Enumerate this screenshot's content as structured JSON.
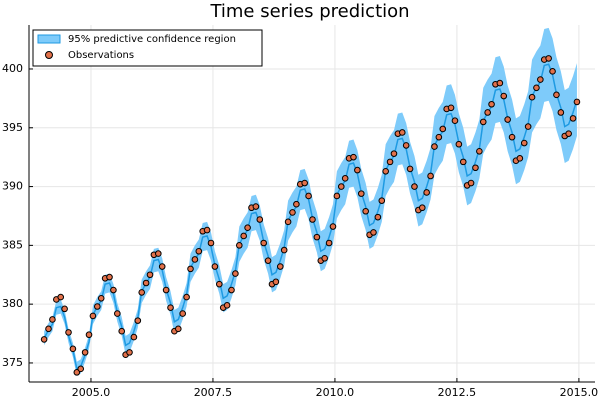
{
  "chart_data": {
    "type": "line",
    "title": "Time series prediction",
    "x": [
      2004.04,
      2004.13,
      2004.21,
      2004.29,
      2004.38,
      2004.46,
      2004.54,
      2004.63,
      2004.71,
      2004.79,
      2004.88,
      2004.96,
      2005.04,
      2005.13,
      2005.21,
      2005.29,
      2005.38,
      2005.46,
      2005.54,
      2005.63,
      2005.71,
      2005.79,
      2005.88,
      2005.96,
      2006.04,
      2006.13,
      2006.21,
      2006.29,
      2006.38,
      2006.46,
      2006.54,
      2006.63,
      2006.71,
      2006.79,
      2006.88,
      2006.96,
      2007.04,
      2007.13,
      2007.21,
      2007.29,
      2007.38,
      2007.46,
      2007.54,
      2007.63,
      2007.71,
      2007.79,
      2007.88,
      2007.96,
      2008.04,
      2008.13,
      2008.21,
      2008.29,
      2008.38,
      2008.46,
      2008.54,
      2008.63,
      2008.71,
      2008.79,
      2008.88,
      2008.96,
      2009.04,
      2009.13,
      2009.21,
      2009.29,
      2009.38,
      2009.46,
      2009.54,
      2009.63,
      2009.71,
      2009.79,
      2009.88,
      2009.96,
      2010.04,
      2010.13,
      2010.21,
      2010.29,
      2010.38,
      2010.46,
      2010.54,
      2010.63,
      2010.71,
      2010.79,
      2010.88,
      2010.96,
      2011.04,
      2011.13,
      2011.21,
      2011.29,
      2011.38,
      2011.46,
      2011.54,
      2011.63,
      2011.71,
      2011.79,
      2011.88,
      2011.96,
      2012.04,
      2012.13,
      2012.21,
      2012.29,
      2012.38,
      2012.46,
      2012.54,
      2012.63,
      2012.71,
      2012.79,
      2012.88,
      2012.96,
      2013.04,
      2013.13,
      2013.21,
      2013.29,
      2013.38,
      2013.46,
      2013.54,
      2013.63,
      2013.71,
      2013.79,
      2013.88,
      2013.96,
      2014.04,
      2014.13,
      2014.21,
      2014.29,
      2014.38,
      2014.46,
      2014.54,
      2014.63,
      2014.71,
      2014.79,
      2014.88,
      2014.96
    ],
    "series": [
      {
        "name": "95% predictive confidence region",
        "type": "band",
        "color": "#7ecbfa",
        "line_color": "#1e9ae2",
        "values": [
          377.1,
          377.8,
          378.3,
          379.7,
          379.8,
          378.9,
          377.3,
          376.1,
          374.5,
          374.7,
          375.7,
          376.8,
          379.1,
          379.8,
          380.3,
          381.7,
          381.8,
          380.9,
          379.3,
          378.1,
          376.5,
          376.7,
          377.7,
          378.8,
          381.1,
          381.8,
          382.3,
          383.7,
          383.8,
          382.9,
          381.3,
          380.1,
          378.5,
          378.7,
          379.7,
          380.8,
          383.1,
          383.8,
          384.3,
          385.7,
          385.8,
          384.9,
          383.3,
          382.1,
          380.5,
          380.7,
          381.7,
          382.8,
          385.1,
          385.8,
          386.3,
          387.7,
          387.8,
          386.9,
          385.3,
          384.1,
          382.5,
          382.7,
          383.7,
          384.8,
          387.1,
          387.8,
          388.3,
          389.7,
          389.8,
          388.9,
          387.3,
          386.1,
          384.5,
          384.7,
          385.7,
          386.8,
          389.3,
          390.0,
          390.5,
          391.9,
          392.0,
          391.1,
          389.5,
          388.3,
          386.7,
          386.9,
          387.9,
          389.0,
          391.4,
          392.1,
          392.6,
          394.0,
          394.1,
          393.2,
          391.6,
          390.4,
          388.8,
          389.0,
          390.0,
          391.1,
          393.5,
          394.2,
          394.7,
          396.1,
          396.2,
          395.3,
          393.7,
          392.5,
          390.9,
          391.1,
          392.1,
          393.2,
          395.6,
          396.3,
          396.8,
          398.2,
          398.3,
          397.4,
          395.8,
          394.6,
          393.0,
          393.2,
          394.2,
          395.3,
          397.7,
          398.4,
          398.9,
          400.3,
          400.4,
          399.5,
          397.9,
          396.7,
          395.1,
          395.3,
          396.3,
          397.4
        ],
        "errors": [
          0.6,
          0.6,
          0.6,
          0.6,
          0.6,
          0.6,
          0.6,
          0.6,
          0.6,
          0.6,
          0.6,
          0.6,
          0.8,
          0.8,
          0.8,
          0.8,
          0.8,
          0.8,
          0.8,
          0.8,
          0.8,
          0.8,
          0.8,
          0.8,
          1.0,
          1.0,
          1.0,
          1.0,
          1.0,
          1.0,
          1.0,
          1.0,
          1.0,
          1.0,
          1.0,
          1.0,
          1.2,
          1.2,
          1.2,
          1.2,
          1.2,
          1.2,
          1.2,
          1.2,
          1.2,
          1.2,
          1.2,
          1.2,
          1.5,
          1.5,
          1.5,
          1.5,
          1.5,
          1.5,
          1.5,
          1.5,
          1.5,
          1.5,
          1.5,
          1.5,
          1.7,
          1.7,
          1.7,
          1.7,
          1.7,
          1.7,
          1.7,
          1.7,
          1.7,
          1.7,
          1.7,
          1.7,
          2.0,
          2.0,
          2.0,
          2.0,
          2.0,
          2.0,
          2.0,
          2.0,
          2.0,
          2.0,
          2.0,
          2.0,
          2.2,
          2.2,
          2.2,
          2.2,
          2.2,
          2.2,
          2.2,
          2.2,
          2.2,
          2.2,
          2.2,
          2.2,
          2.5,
          2.5,
          2.5,
          2.5,
          2.5,
          2.5,
          2.5,
          2.5,
          2.5,
          2.5,
          2.5,
          2.5,
          2.8,
          2.8,
          2.8,
          2.8,
          2.8,
          2.8,
          2.8,
          2.8,
          2.8,
          2.8,
          2.8,
          2.8,
          3.1,
          3.1,
          3.1,
          3.1,
          3.1,
          3.1,
          3.1,
          3.1,
          3.1,
          3.1,
          3.1,
          3.1
        ]
      },
      {
        "name": "Observations",
        "type": "scatter",
        "color": "#e2714a",
        "values": [
          377.0,
          377.9,
          378.7,
          380.4,
          380.6,
          379.6,
          377.6,
          376.2,
          374.2,
          374.5,
          375.9,
          377.4,
          379.0,
          379.8,
          380.5,
          382.2,
          382.3,
          381.2,
          379.2,
          377.7,
          375.7,
          375.9,
          377.2,
          378.6,
          381.0,
          381.8,
          382.5,
          384.2,
          384.3,
          383.2,
          381.2,
          379.7,
          377.7,
          377.9,
          379.2,
          380.6,
          383.0,
          383.8,
          384.5,
          386.2,
          386.3,
          385.2,
          383.2,
          381.7,
          379.7,
          379.9,
          381.2,
          382.6,
          385.0,
          385.8,
          386.5,
          388.2,
          388.3,
          387.2,
          385.2,
          383.7,
          381.7,
          381.9,
          383.2,
          384.6,
          387.0,
          387.8,
          388.5,
          390.2,
          390.3,
          389.2,
          387.2,
          385.7,
          383.7,
          383.9,
          385.2,
          386.6,
          389.2,
          390.0,
          390.7,
          392.4,
          392.5,
          391.4,
          389.4,
          387.9,
          385.9,
          386.1,
          387.4,
          388.8,
          391.3,
          392.1,
          392.8,
          394.5,
          394.6,
          393.5,
          391.5,
          390.0,
          388.0,
          388.2,
          389.5,
          390.9,
          393.4,
          394.2,
          394.9,
          396.6,
          396.7,
          395.6,
          393.6,
          392.1,
          390.1,
          390.3,
          391.6,
          393.0,
          395.5,
          396.3,
          397.0,
          398.7,
          398.8,
          397.7,
          395.7,
          394.2,
          392.2,
          392.4,
          393.7,
          395.1,
          397.6,
          398.4,
          399.1,
          400.8,
          400.9,
          399.8,
          397.8,
          396.3,
          394.3,
          394.5,
          395.8,
          397.2
        ]
      }
    ],
    "xlim": [
      2003.73,
      2015.33
    ],
    "ylim": [
      373.38,
      403.74
    ],
    "xticks": [
      {
        "value": 2005,
        "label": "2005.0"
      },
      {
        "value": 2007.5,
        "label": "2007.5"
      },
      {
        "value": 2010,
        "label": "2010.0"
      },
      {
        "value": 2012.5,
        "label": "2012.5"
      },
      {
        "value": 2015,
        "label": "2015.0"
      }
    ],
    "yticks": [
      375,
      380,
      385,
      390,
      395,
      400
    ],
    "grid": true,
    "legend": "top-left"
  }
}
